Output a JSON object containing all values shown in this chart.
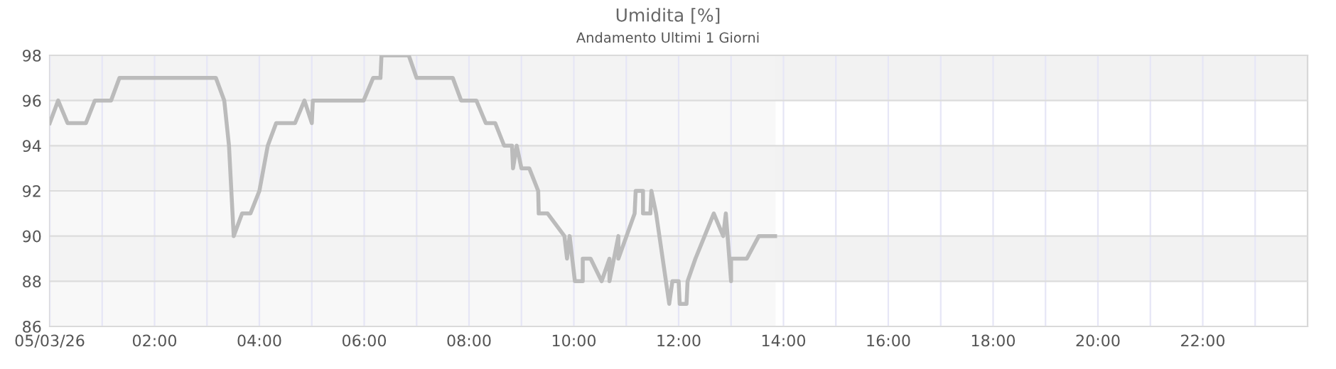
{
  "chart_data": {
    "type": "line",
    "title": "Umidita [%]",
    "subtitle": "Andamento Ultimi 1 Giorni",
    "x": [
      0,
      0.16,
      0.34,
      0.69,
      0.86,
      1.17,
      1.33,
      3.17,
      3.33,
      3.42,
      3.51,
      3.67,
      3.83,
      4.0,
      4.16,
      4.32,
      4.68,
      4.86,
      5.0,
      5.02,
      5.99,
      6.17,
      6.31,
      6.33,
      6.85,
      7.0,
      7.69,
      7.85,
      8.14,
      8.32,
      8.5,
      8.67,
      8.82,
      8.84,
      8.91,
      9.0,
      9.15,
      9.32,
      9.33,
      9.5,
      9.82,
      9.87,
      9.92,
      10.02,
      10.17,
      10.17,
      10.32,
      10.53,
      10.68,
      10.68,
      10.85,
      10.85,
      11.16,
      11.18,
      11.32,
      11.32,
      11.46,
      11.48,
      11.57,
      11.82,
      11.88,
      12.0,
      12.02,
      12.15,
      12.17,
      12.32,
      12.67,
      12.85,
      12.9,
      13.0,
      13.0,
      13.3,
      13.53,
      13.84
    ],
    "series": [
      {
        "color": "#bbbbbb",
        "values": [
          95,
          96,
          95,
          95,
          96,
          96,
          97,
          97,
          96,
          94,
          90,
          91,
          91,
          92,
          94,
          95,
          95,
          96,
          95,
          96,
          96,
          97,
          97,
          98,
          98,
          97,
          97,
          96,
          96,
          95,
          95,
          94,
          94,
          93,
          94,
          93,
          93,
          92,
          91,
          91,
          90,
          89,
          90,
          88,
          88,
          89,
          89,
          88,
          89,
          88,
          90,
          89,
          91,
          92,
          92,
          91,
          91,
          92,
          91,
          87,
          88,
          88,
          87,
          87,
          88,
          89,
          91,
          90,
          91,
          88,
          89,
          89,
          90,
          90
        ]
      }
    ],
    "xlim": [
      0,
      24
    ],
    "xticks": [
      {
        "value": 0,
        "label": "05/03/26"
      },
      {
        "value": 1,
        "label": null
      },
      {
        "value": 2,
        "label": "02:00"
      },
      {
        "value": 3,
        "label": null
      },
      {
        "value": 4,
        "label": "04:00"
      },
      {
        "value": 5,
        "label": null
      },
      {
        "value": 6,
        "label": "06:00"
      },
      {
        "value": 7,
        "label": null
      },
      {
        "value": 8,
        "label": "08:00"
      },
      {
        "value": 9,
        "label": null
      },
      {
        "value": 10,
        "label": "10:00"
      },
      {
        "value": 11,
        "label": null
      },
      {
        "value": 12,
        "label": "12:00"
      },
      {
        "value": 13,
        "label": null
      },
      {
        "value": 14,
        "label": "14:00"
      },
      {
        "value": 15,
        "label": null
      },
      {
        "value": 16,
        "label": "16:00"
      },
      {
        "value": 17,
        "label": null
      },
      {
        "value": 18,
        "label": "18:00"
      },
      {
        "value": 19,
        "label": null
      },
      {
        "value": 20,
        "label": "20:00"
      },
      {
        "value": 21,
        "label": null
      },
      {
        "value": 22,
        "label": "22:00"
      },
      {
        "value": 23,
        "label": null
      }
    ],
    "ylim": [
      86,
      98
    ],
    "yticks": [
      86,
      88,
      90,
      92,
      94,
      96,
      98
    ],
    "bands": [
      {
        "axis": "y",
        "from": 96,
        "to": 98,
        "color": "#f2f2f2"
      },
      {
        "axis": "y",
        "from": 92,
        "to": 94,
        "color": "#f2f2f2"
      },
      {
        "axis": "y",
        "from": 88,
        "to": 90,
        "color": "#f2f2f2"
      },
      {
        "axis": "x",
        "from": 0,
        "to": 13.85,
        "color": "#f4f4f4"
      }
    ],
    "grid": true,
    "marker": "none",
    "line_style": "solid",
    "legend": false
  }
}
